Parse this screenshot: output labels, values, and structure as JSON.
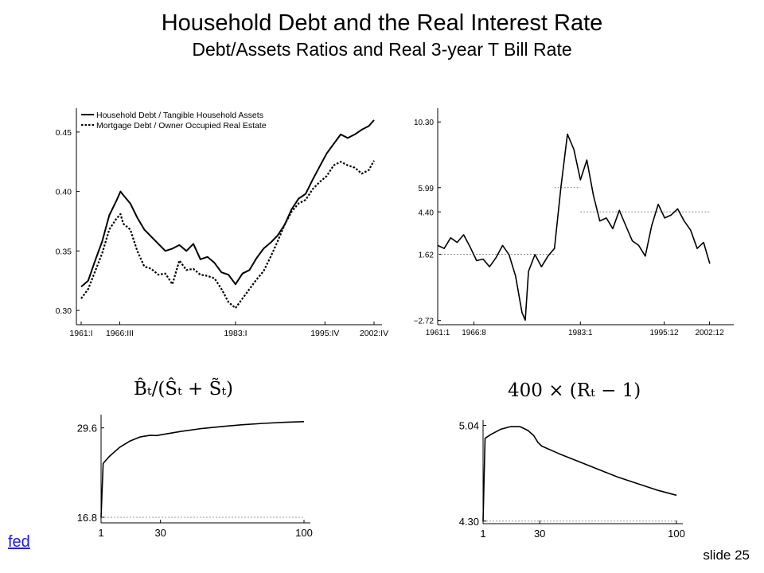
{
  "slide": {
    "title": "Household Debt and the Real Interest Rate",
    "subtitle": "Debt/Assets Ratios and Real 3-year T Bill Rate",
    "link_label": "fed",
    "slide_number": "slide 25"
  },
  "chart_data": [
    {
      "id": "debt_ratios",
      "type": "line",
      "xlabel": "",
      "ylabel": "",
      "x_ticks": [
        "1961:I",
        "1966:III",
        "1983:I",
        "1995:IV",
        "2002:IV"
      ],
      "x_range": [
        "1961:I",
        "2002:IV"
      ],
      "y_ticks": [
        "0.30",
        "0.35",
        "0.40",
        "0.45"
      ],
      "ylim": [
        0.288,
        0.47
      ],
      "legend_position": "top-left",
      "grid": false,
      "series": [
        {
          "name": "Household Debt / Tangible Household Assets",
          "style": "solid",
          "points": [
            [
              1961.0,
              0.32
            ],
            [
              1962.0,
              0.325
            ],
            [
              1963.0,
              0.342
            ],
            [
              1964.0,
              0.358
            ],
            [
              1965.0,
              0.38
            ],
            [
              1966.0,
              0.392
            ],
            [
              1966.6,
              0.4
            ],
            [
              1967.0,
              0.397
            ],
            [
              1968.0,
              0.39
            ],
            [
              1969.0,
              0.378
            ],
            [
              1970.0,
              0.368
            ],
            [
              1971.0,
              0.362
            ],
            [
              1972.0,
              0.356
            ],
            [
              1973.0,
              0.35
            ],
            [
              1974.0,
              0.352
            ],
            [
              1975.0,
              0.355
            ],
            [
              1976.0,
              0.35
            ],
            [
              1977.0,
              0.356
            ],
            [
              1978.0,
              0.343
            ],
            [
              1979.0,
              0.345
            ],
            [
              1980.0,
              0.34
            ],
            [
              1981.0,
              0.332
            ],
            [
              1982.0,
              0.33
            ],
            [
              1983.0,
              0.322
            ],
            [
              1984.0,
              0.331
            ],
            [
              1985.0,
              0.334
            ],
            [
              1986.0,
              0.344
            ],
            [
              1987.0,
              0.352
            ],
            [
              1988.0,
              0.357
            ],
            [
              1989.0,
              0.363
            ],
            [
              1990.0,
              0.372
            ],
            [
              1991.0,
              0.385
            ],
            [
              1992.0,
              0.394
            ],
            [
              1993.0,
              0.398
            ],
            [
              1994.0,
              0.41
            ],
            [
              1995.0,
              0.421
            ],
            [
              1996.0,
              0.432
            ],
            [
              1997.0,
              0.44
            ],
            [
              1998.0,
              0.448
            ],
            [
              1999.0,
              0.445
            ],
            [
              2000.0,
              0.448
            ],
            [
              2001.0,
              0.452
            ],
            [
              2002.0,
              0.455
            ],
            [
              2002.75,
              0.46
            ]
          ]
        },
        {
          "name": "Mortgage Debt / Owner Occupied Real Estate",
          "style": "dotted",
          "points": [
            [
              1961.0,
              0.31
            ],
            [
              1962.0,
              0.318
            ],
            [
              1963.0,
              0.333
            ],
            [
              1964.0,
              0.348
            ],
            [
              1965.0,
              0.368
            ],
            [
              1966.0,
              0.377
            ],
            [
              1966.6,
              0.381
            ],
            [
              1967.0,
              0.373
            ],
            [
              1968.0,
              0.368
            ],
            [
              1969.0,
              0.35
            ],
            [
              1970.0,
              0.337
            ],
            [
              1971.0,
              0.335
            ],
            [
              1972.0,
              0.33
            ],
            [
              1973.0,
              0.331
            ],
            [
              1974.0,
              0.322
            ],
            [
              1975.0,
              0.342
            ],
            [
              1976.0,
              0.334
            ],
            [
              1977.0,
              0.335
            ],
            [
              1978.0,
              0.33
            ],
            [
              1979.0,
              0.329
            ],
            [
              1980.0,
              0.327
            ],
            [
              1981.0,
              0.318
            ],
            [
              1982.0,
              0.307
            ],
            [
              1983.0,
              0.302
            ],
            [
              1984.0,
              0.31
            ],
            [
              1985.0,
              0.318
            ],
            [
              1986.0,
              0.326
            ],
            [
              1987.0,
              0.333
            ],
            [
              1988.0,
              0.345
            ],
            [
              1989.0,
              0.358
            ],
            [
              1990.0,
              0.372
            ],
            [
              1991.0,
              0.383
            ],
            [
              1992.0,
              0.39
            ],
            [
              1993.0,
              0.393
            ],
            [
              1994.0,
              0.402
            ],
            [
              1995.0,
              0.408
            ],
            [
              1996.0,
              0.413
            ],
            [
              1997.0,
              0.422
            ],
            [
              1998.0,
              0.425
            ],
            [
              1999.0,
              0.422
            ],
            [
              2000.0,
              0.42
            ],
            [
              2001.0,
              0.415
            ],
            [
              2002.0,
              0.418
            ],
            [
              2002.75,
              0.426
            ]
          ]
        }
      ]
    },
    {
      "id": "real_rate",
      "type": "line",
      "xlabel": "",
      "ylabel": "",
      "x_ticks": [
        "1961:1",
        "1966:8",
        "1983:1",
        "1995:12",
        "2002:12"
      ],
      "x_range": [
        "1961:1",
        "2002:12"
      ],
      "y_ticks": [
        "−2.72",
        "1.62",
        "4.40",
        "5.99",
        "10.30"
      ],
      "ylim": [
        -3.0,
        11.2
      ],
      "grid": false,
      "reference_lines": [
        {
          "y": 1.62,
          "x_from": 1961.0,
          "x_to": 1979.0
        },
        {
          "y": 5.99,
          "x_from": 1979.0,
          "x_to": 1983.0
        },
        {
          "y": 4.4,
          "x_from": 1983.0,
          "x_to": 2002.95
        }
      ],
      "series": [
        {
          "name": "",
          "style": "solid",
          "points": [
            [
              1961.0,
              2.2
            ],
            [
              1962.0,
              2.0
            ],
            [
              1963.0,
              2.7
            ],
            [
              1964.0,
              2.4
            ],
            [
              1965.0,
              2.9
            ],
            [
              1966.0,
              2.1
            ],
            [
              1967.0,
              1.2
            ],
            [
              1968.0,
              1.3
            ],
            [
              1969.0,
              0.8
            ],
            [
              1970.0,
              1.4
            ],
            [
              1971.0,
              2.2
            ],
            [
              1972.0,
              1.6
            ],
            [
              1973.0,
              0.2
            ],
            [
              1974.0,
              -2.2
            ],
            [
              1974.5,
              -2.7
            ],
            [
              1975.0,
              0.5
            ],
            [
              1976.0,
              1.6
            ],
            [
              1977.0,
              0.8
            ],
            [
              1978.0,
              1.5
            ],
            [
              1979.0,
              2.0
            ],
            [
              1980.0,
              6.0
            ],
            [
              1981.0,
              9.5
            ],
            [
              1982.0,
              8.5
            ],
            [
              1983.0,
              6.5
            ],
            [
              1984.0,
              7.8
            ],
            [
              1985.0,
              5.5
            ],
            [
              1986.0,
              3.8
            ],
            [
              1987.0,
              4.0
            ],
            [
              1988.0,
              3.3
            ],
            [
              1989.0,
              4.5
            ],
            [
              1990.0,
              3.5
            ],
            [
              1991.0,
              2.5
            ],
            [
              1992.0,
              2.2
            ],
            [
              1993.0,
              1.5
            ],
            [
              1994.0,
              3.5
            ],
            [
              1995.0,
              4.9
            ],
            [
              1996.0,
              4.0
            ],
            [
              1997.0,
              4.2
            ],
            [
              1998.0,
              4.6
            ],
            [
              1999.0,
              3.8
            ],
            [
              2000.0,
              3.2
            ],
            [
              2001.0,
              2.0
            ],
            [
              2002.0,
              2.4
            ],
            [
              2002.95,
              1.0
            ]
          ]
        }
      ]
    },
    {
      "id": "model_debt",
      "type": "line",
      "title_formula": "B̂ₜ/(Ŝₜ + S̃ₜ)",
      "x_ticks": [
        "1",
        "30",
        "100"
      ],
      "xlim": [
        1,
        100
      ],
      "y_ticks": [
        "16.8",
        "29.6"
      ],
      "ylim": [
        16.0,
        31.5
      ],
      "reference_line": 16.8,
      "series": [
        {
          "name": "",
          "style": "solid",
          "points": [
            [
              1,
              16.8
            ],
            [
              2,
              24.5
            ],
            [
              5,
              25.5
            ],
            [
              10,
              26.8
            ],
            [
              15,
              27.7
            ],
            [
              20,
              28.3
            ],
            [
              25,
              28.55
            ],
            [
              28,
              28.5
            ],
            [
              30,
              28.6
            ],
            [
              40,
              29.1
            ],
            [
              50,
              29.5
            ],
            [
              60,
              29.8
            ],
            [
              70,
              30.05
            ],
            [
              80,
              30.25
            ],
            [
              90,
              30.4
            ],
            [
              100,
              30.5
            ]
          ]
        }
      ]
    },
    {
      "id": "model_rate",
      "type": "line",
      "title_formula": "400 × (Rₜ − 1)",
      "x_ticks": [
        "1",
        "30",
        "100"
      ],
      "xlim": [
        1,
        100
      ],
      "y_ticks": [
        "4.30",
        "5.04"
      ],
      "ylim": [
        4.28,
        5.08
      ],
      "reference_line": 4.3,
      "series": [
        {
          "name": "",
          "style": "solid",
          "points": [
            [
              1,
              4.3
            ],
            [
              2,
              4.94
            ],
            [
              5,
              4.97
            ],
            [
              10,
              5.01
            ],
            [
              15,
              5.03
            ],
            [
              20,
              5.03
            ],
            [
              24,
              5.0
            ],
            [
              27,
              4.96
            ],
            [
              29,
              4.91
            ],
            [
              31,
              4.88
            ],
            [
              40,
              4.82
            ],
            [
              50,
              4.76
            ],
            [
              60,
              4.7
            ],
            [
              70,
              4.64
            ],
            [
              80,
              4.59
            ],
            [
              90,
              4.54
            ],
            [
              100,
              4.5
            ]
          ]
        }
      ]
    }
  ]
}
